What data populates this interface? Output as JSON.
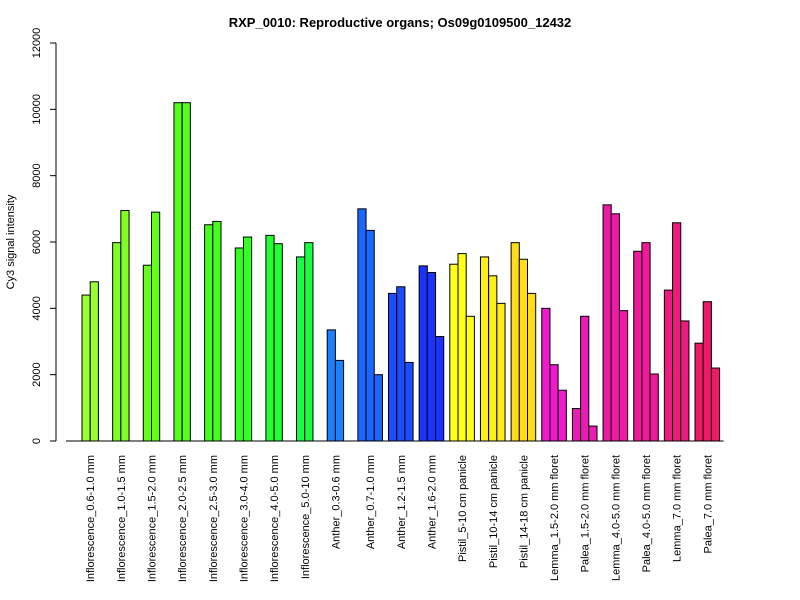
{
  "chart_data": {
    "type": "bar",
    "title": "RXP_0010: Reproductive organs; Os09g0109500_12432",
    "xlabel": "",
    "ylabel": "Cy3 signal intensity",
    "ylim": [
      0,
      12000
    ],
    "yticks": [
      0,
      2000,
      4000,
      6000,
      8000,
      10000,
      12000
    ],
    "grid": false,
    "legend": "none",
    "groups": [
      {
        "label": "Inflorescence_0.6-1.0 mm",
        "color": "#99ff33",
        "values": [
          4400,
          4800
        ]
      },
      {
        "label": "Inflorescence_1.0-1.5 mm",
        "color": "#80ff22",
        "values": [
          5980,
          6950
        ]
      },
      {
        "label": "Inflorescence_1.5-2.0 mm",
        "color": "#66ff1a",
        "values": [
          5300,
          6900
        ]
      },
      {
        "label": "Inflorescence_2.0-2.5 mm",
        "color": "#55ff1a",
        "values": [
          10200,
          10200
        ]
      },
      {
        "label": "Inflorescence_2.5-3.0 mm",
        "color": "#44ff1a",
        "values": [
          6520,
          6620
        ]
      },
      {
        "label": "Inflorescence_3.0-4.0 mm",
        "color": "#33ff22",
        "values": [
          5820,
          6150
        ]
      },
      {
        "label": "Inflorescence_4.0-5.0 mm",
        "color": "#22ff33",
        "values": [
          6200,
          5950
        ]
      },
      {
        "label": "Inflorescence_5.0-10 mm",
        "color": "#1aff44",
        "values": [
          5550,
          5980
        ]
      },
      {
        "label": "Anther_0.3-0.6 mm",
        "color": "#1a80ff",
        "values": [
          3350,
          2430
        ]
      },
      {
        "label": "Anther_0.7-1.0 mm",
        "color": "#1a66ff",
        "values": [
          7000,
          6350,
          2000
        ]
      },
      {
        "label": "Anther_1.2-1.5 mm",
        "color": "#1a4dff",
        "values": [
          4450,
          4650,
          2370
        ]
      },
      {
        "label": "Anther_1.6-2.0 mm",
        "color": "#1a33ff",
        "values": [
          5280,
          5080,
          3150
        ]
      },
      {
        "label": "Pistil_5-10 cm panicle",
        "color": "#ffff1a",
        "values": [
          5330,
          5650,
          3760
        ]
      },
      {
        "label": "Pistil_10-14 cm panicle",
        "color": "#ffee1a",
        "values": [
          5550,
          4980,
          4150
        ]
      },
      {
        "label": "Pistil_14-18 cm panicle",
        "color": "#ffdd1a",
        "values": [
          5980,
          5480,
          4450
        ]
      },
      {
        "label": "Lemma_1.5-2.0 mm floret",
        "color": "#ee1acc",
        "values": [
          4000,
          2300,
          1530
        ]
      },
      {
        "label": "Palea_1.5-2.0 mm floret",
        "color": "#ee1ab8",
        "values": [
          980,
          3760,
          450
        ]
      },
      {
        "label": "Lemma_4.0-5.0 mm floret",
        "color": "#ee1aa6",
        "values": [
          7120,
          6850,
          3930
        ]
      },
      {
        "label": "Palea_4.0-5.0 mm floret",
        "color": "#ee1a99",
        "values": [
          5720,
          5980,
          2020
        ]
      },
      {
        "label": "Lemma_7.0 mm floret",
        "color": "#ee1a80",
        "values": [
          4550,
          6580,
          3620
        ]
      },
      {
        "label": "Palea_7.0 mm floret",
        "color": "#ee1a66",
        "values": [
          2950,
          4200,
          2200
        ]
      }
    ]
  }
}
